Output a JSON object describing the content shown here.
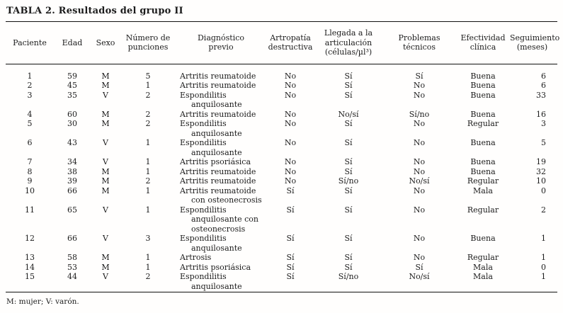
{
  "title": "TABLA 2. Resultados del grupo II",
  "footnote": "M: mujer; V: varón.",
  "table": {
    "columns": [
      {
        "key": "paciente",
        "label": "Paciente"
      },
      {
        "key": "edad",
        "label": "Edad"
      },
      {
        "key": "sexo",
        "label": "Sexo"
      },
      {
        "key": "punciones",
        "label": "Número de punciones"
      },
      {
        "key": "diagnostico",
        "label": "Diagnóstico previo"
      },
      {
        "key": "artropatia",
        "label": "Artropatía destructiva"
      },
      {
        "key": "llegada",
        "label": "Llegada a la articulación (células/µl³)"
      },
      {
        "key": "problemas",
        "label": "Problemas técnicos"
      },
      {
        "key": "efectividad",
        "label": "Efectividad clínica"
      },
      {
        "key": "seguimiento",
        "label": "Seguimiento (meses)"
      }
    ],
    "rows": [
      [
        "1",
        "59",
        "M",
        "5",
        "Artritis reumatoide",
        "No",
        "Sí",
        "Sí",
        "Buena",
        "6"
      ],
      [
        "2",
        "45",
        "M",
        "1",
        "Artritis reumatoide",
        "No",
        "Sí",
        "No",
        "Buena",
        "6"
      ],
      [
        "3",
        "35",
        "V",
        "2",
        "Espondilitis anquilosante",
        "No",
        "Sí",
        "No",
        "Buena",
        "33"
      ],
      [
        "4",
        "60",
        "M",
        "2",
        "Artritis reumatoide",
        "No",
        "No/sí",
        "Sí/no",
        "Buena",
        "16"
      ],
      [
        "5",
        "30",
        "M",
        "2",
        "Espondilitis anquilosante",
        "No",
        "Sí",
        "No",
        "Regular",
        "3"
      ],
      [
        "6",
        "43",
        "V",
        "1",
        "Espondilitis anquilosante",
        "No",
        "Sí",
        "No",
        "Buena",
        "5"
      ],
      [
        "7",
        "34",
        "V",
        "1",
        "Artritis psoriásica",
        "No",
        "Sí",
        "No",
        "Buena",
        "19"
      ],
      [
        "8",
        "38",
        "M",
        "1",
        "Artritis reumatoide",
        "No",
        "Sí",
        "No",
        "Buena",
        "32"
      ],
      [
        "9",
        "39",
        "M",
        "2",
        "Artritis reumatoide",
        "No",
        "Sí/no",
        "No/sí",
        "Regular",
        "10"
      ],
      [
        "10",
        "66",
        "M",
        "1",
        "Artritis reumatoide con osteonecrosis",
        "Sí",
        "Sí",
        "No",
        "Mala",
        "0"
      ],
      [
        "11",
        "65",
        "V",
        "1",
        "Espondilitis anquilosante con osteonecrosis",
        "Sí",
        "Sí",
        "No",
        "Regular",
        "2"
      ],
      [
        "12",
        "66",
        "V",
        "3",
        "Espondilitis anquilosante",
        "Sí",
        "Sí",
        "No",
        "Buena",
        "1"
      ],
      [
        "13",
        "58",
        "M",
        "1",
        "Artrosis",
        "Sí",
        "Sí",
        "No",
        "Regular",
        "1"
      ],
      [
        "14",
        "53",
        "M",
        "1",
        "Artritis psoriásica",
        "Sí",
        "Sí",
        "Sí",
        "Mala",
        "0"
      ],
      [
        "15",
        "44",
        "V",
        "2",
        "Espondilitis anquilosante",
        "Sí",
        "Sí/no",
        "No/sí",
        "Mala",
        "1"
      ]
    ]
  }
}
